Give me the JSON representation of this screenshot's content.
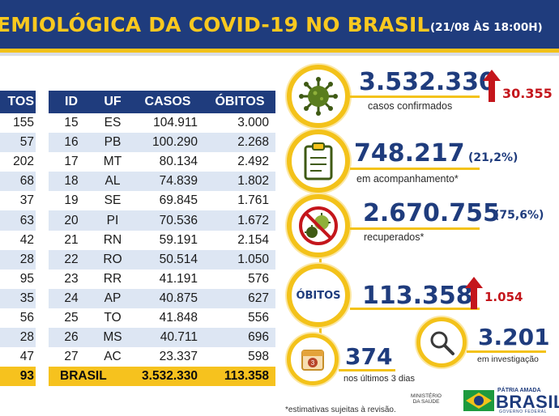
{
  "header": {
    "title": "EMIOLÓGICA DA COVID-19 NO BRASIL",
    "date": "(21/08 ÀS 18:00H)"
  },
  "left_table": {
    "header": "TOS",
    "values": [
      "155",
      "57",
      "202",
      "68",
      "37",
      "63",
      "42",
      "28",
      "95",
      "35",
      "56",
      "28",
      "47",
      "93"
    ]
  },
  "main_table": {
    "columns": [
      "ID",
      "UF",
      "CASOS",
      "ÓBITOS"
    ],
    "rows": [
      {
        "id": "15",
        "uf": "ES",
        "casos": "104.911",
        "obitos": "3.000"
      },
      {
        "id": "16",
        "uf": "PB",
        "casos": "100.290",
        "obitos": "2.268"
      },
      {
        "id": "17",
        "uf": "MT",
        "casos": "80.134",
        "obitos": "2.492"
      },
      {
        "id": "18",
        "uf": "AL",
        "casos": "74.839",
        "obitos": "1.802"
      },
      {
        "id": "19",
        "uf": "SE",
        "casos": "69.845",
        "obitos": "1.761"
      },
      {
        "id": "20",
        "uf": "PI",
        "casos": "70.536",
        "obitos": "1.672"
      },
      {
        "id": "21",
        "uf": "RN",
        "casos": "59.191",
        "obitos": "2.154"
      },
      {
        "id": "22",
        "uf": "RO",
        "casos": "50.514",
        "obitos": "1.050"
      },
      {
        "id": "23",
        "uf": "RR",
        "casos": "41.191",
        "obitos": "576"
      },
      {
        "id": "24",
        "uf": "AP",
        "casos": "40.875",
        "obitos": "627"
      },
      {
        "id": "25",
        "uf": "TO",
        "casos": "41.848",
        "obitos": "556"
      },
      {
        "id": "26",
        "uf": "MS",
        "casos": "40.711",
        "obitos": "696"
      },
      {
        "id": "27",
        "uf": "AC",
        "casos": "23.337",
        "obitos": "598"
      }
    ],
    "total": {
      "label": "BRASIL",
      "casos": "3.532.330",
      "obitos": "113.358"
    }
  },
  "stats": {
    "confirmed": {
      "value": "3.532.330",
      "delta": "30.355",
      "label": "casos confirmados",
      "icon": "virus-icon"
    },
    "monitoring": {
      "value": "748.217",
      "pct": "(21,2%)",
      "label": "em acompanhamento*",
      "icon": "clipboard-icon"
    },
    "recovered": {
      "value": "2.670.755",
      "pct": "(75,6%)",
      "label": "recuperados*",
      "icon": "no-virus-icon"
    },
    "deaths": {
      "badge": "ÓBITOS",
      "value": "113.358",
      "delta": "1.054"
    },
    "investigation": {
      "value": "3.201",
      "label": "em investigação",
      "icon": "magnifier-icon"
    },
    "last3days": {
      "value": "374",
      "label": "nos últimos 3 dias",
      "icon": "calendar-icon",
      "calendar_number": "3"
    }
  },
  "footnote": "*estimativas sujeitas à revisão.",
  "footer": {
    "ministerio": "MINISTÉRIO DA SAÚDE",
    "patria": "PÁTRIA AMADA",
    "brasil": "BRASIL",
    "governo": "GOVERNO FEDERAL"
  },
  "colors": {
    "navy": "#1f3c7d",
    "yellow": "#f3c21a",
    "red": "#c4161c",
    "row_alt": "#dde6f3",
    "virus_green": "#5a7d1e"
  }
}
